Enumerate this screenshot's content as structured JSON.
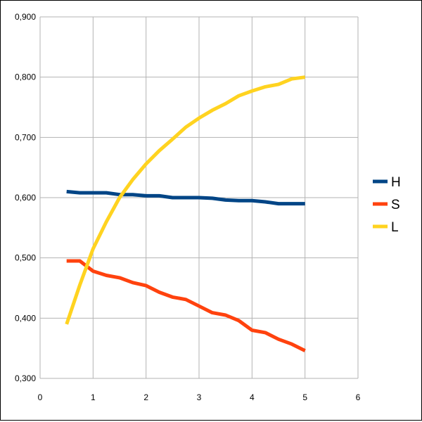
{
  "chart_data": {
    "type": "line",
    "title": "",
    "xlabel": "",
    "ylabel": "",
    "xlim": [
      0,
      6
    ],
    "ylim": [
      0.3,
      0.9
    ],
    "x_ticks": [
      0,
      1,
      2,
      3,
      4,
      5,
      6
    ],
    "y_ticks": [
      0.3,
      0.4,
      0.5,
      0.6,
      0.7,
      0.8,
      0.9
    ],
    "x_tick_labels": [
      "0",
      "1",
      "2",
      "3",
      "4",
      "5",
      "6"
    ],
    "y_tick_labels": [
      "0,300",
      "0,400",
      "0,500",
      "0,600",
      "0,700",
      "0,800",
      "0,900"
    ],
    "grid": true,
    "legend_position": "right",
    "x": [
      0.5,
      0.75,
      1.0,
      1.25,
      1.5,
      1.75,
      2.0,
      2.25,
      2.5,
      2.75,
      3.0,
      3.25,
      3.5,
      3.75,
      4.0,
      4.25,
      4.5,
      4.75,
      5.0
    ],
    "series": [
      {
        "name": "H",
        "color": "#004586",
        "values": [
          0.61,
          0.608,
          0.608,
          0.608,
          0.605,
          0.605,
          0.603,
          0.603,
          0.6,
          0.6,
          0.6,
          0.599,
          0.596,
          0.595,
          0.595,
          0.593,
          0.59,
          0.59,
          0.59
        ]
      },
      {
        "name": "S",
        "color": "#ff420e",
        "values": [
          0.495,
          0.495,
          0.478,
          0.471,
          0.467,
          0.459,
          0.454,
          0.443,
          0.435,
          0.431,
          0.42,
          0.409,
          0.405,
          0.396,
          0.38,
          0.376,
          0.365,
          0.357,
          0.346
        ]
      },
      {
        "name": "L",
        "color": "#ffd320",
        "values": [
          0.39,
          0.455,
          0.515,
          0.56,
          0.6,
          0.63,
          0.656,
          0.678,
          0.697,
          0.717,
          0.732,
          0.745,
          0.756,
          0.769,
          0.777,
          0.784,
          0.788,
          0.797,
          0.8
        ]
      }
    ]
  }
}
